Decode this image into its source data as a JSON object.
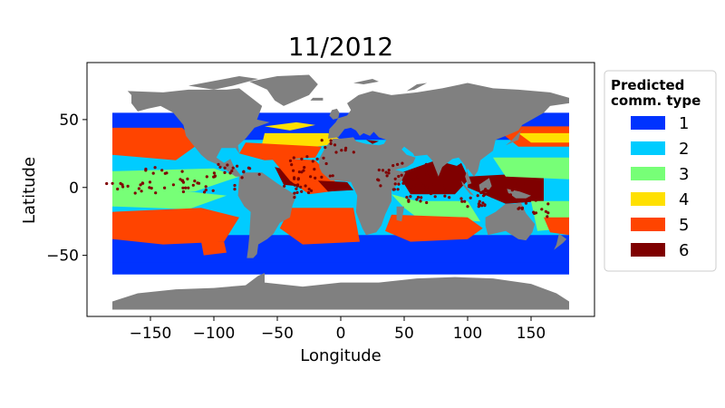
{
  "chart_data": {
    "type": "map",
    "title": "11/2012",
    "xlabel": "Longitude",
    "ylabel": "Latitude",
    "xlim": [
      -200,
      200
    ],
    "ylim": [
      -95,
      92
    ],
    "xticks": [
      -150,
      -100,
      -50,
      0,
      50,
      100,
      150
    ],
    "yticks": [
      -50,
      0,
      50
    ],
    "xtick_labels": [
      "−150",
      "−100",
      "−50",
      "0",
      "50",
      "100",
      "150"
    ],
    "ytick_labels": [
      "−50",
      "0",
      "50"
    ],
    "land_color": "#808080",
    "legend": {
      "title_lines": [
        "Predicted",
        "comm. type"
      ],
      "placement": "outside-right",
      "entries": [
        {
          "label": "1",
          "color": "#0033ff"
        },
        {
          "label": "2",
          "color": "#00ccff"
        },
        {
          "label": "3",
          "color": "#77ff77"
        },
        {
          "label": "4",
          "color": "#ffe000"
        },
        {
          "label": "5",
          "color": "#ff4400"
        },
        {
          "label": "6",
          "color": "#7f0000"
        }
      ]
    }
  }
}
